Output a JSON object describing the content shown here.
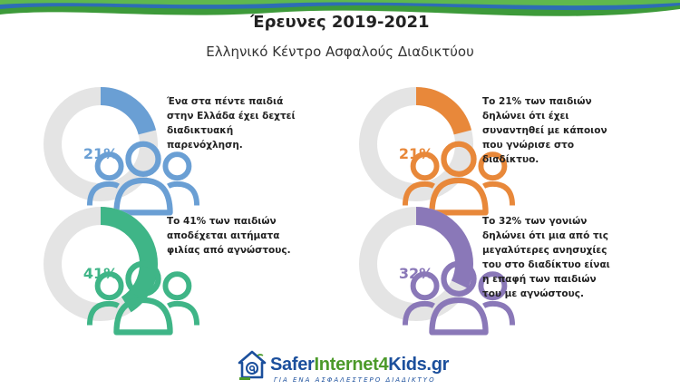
{
  "header": {
    "title": "Έρευνες 2019-2021",
    "subtitle": "Ελληνικό Κέντρο Ασφαλούς Διαδικτύου"
  },
  "stats": [
    {
      "percent": "21%",
      "value": 0.21,
      "color": "#6a9fd4",
      "icon": "people-icon",
      "text": "Ένα στα πέντε παιδιά στην Ελλάδα έχει δεχτεί διαδικτυακή παρενόχληση."
    },
    {
      "percent": "21%",
      "value": 0.21,
      "color": "#e8883a",
      "icon": "people-icon",
      "text": "Το 21% των παιδιών δηλώνει ότι έχει συναντηθεί με κάποιον που γνώρισε στο διαδίκτυο."
    },
    {
      "percent": "41%",
      "value": 0.41,
      "color": "#3fb587",
      "icon": "people-icon",
      "text": "Το 41% των παιδιών αποδέχεται αιτήματα φιλίας από αγνώστους."
    },
    {
      "percent": "32%",
      "value": 0.32,
      "color": "#8a78b8",
      "icon": "people-icon",
      "text": "Το 32% των γονιών δηλώνει ότι μια από τις μεγαλύτερες ανησυχίες του στο διαδίκτυο είναι η επαφή των παιδιών του με αγνώστους."
    }
  ],
  "footer": {
    "logo_part1": "Safer",
    "logo_part2": "Internet4",
    "logo_part3": "Kids.gr",
    "tagline": "ΓΙΑ ΕΝΑ ΑΣΦΑΛΕΣΤΕΡΟ ΔΙΑΔΙΚΤΥΟ"
  },
  "colors": {
    "track": "#e4e4e4",
    "wave_green": "#3d9a3a",
    "wave_blue": "#2d6db5",
    "logo_blue": "#1b4f9c",
    "logo_green": "#4c9a2a"
  }
}
